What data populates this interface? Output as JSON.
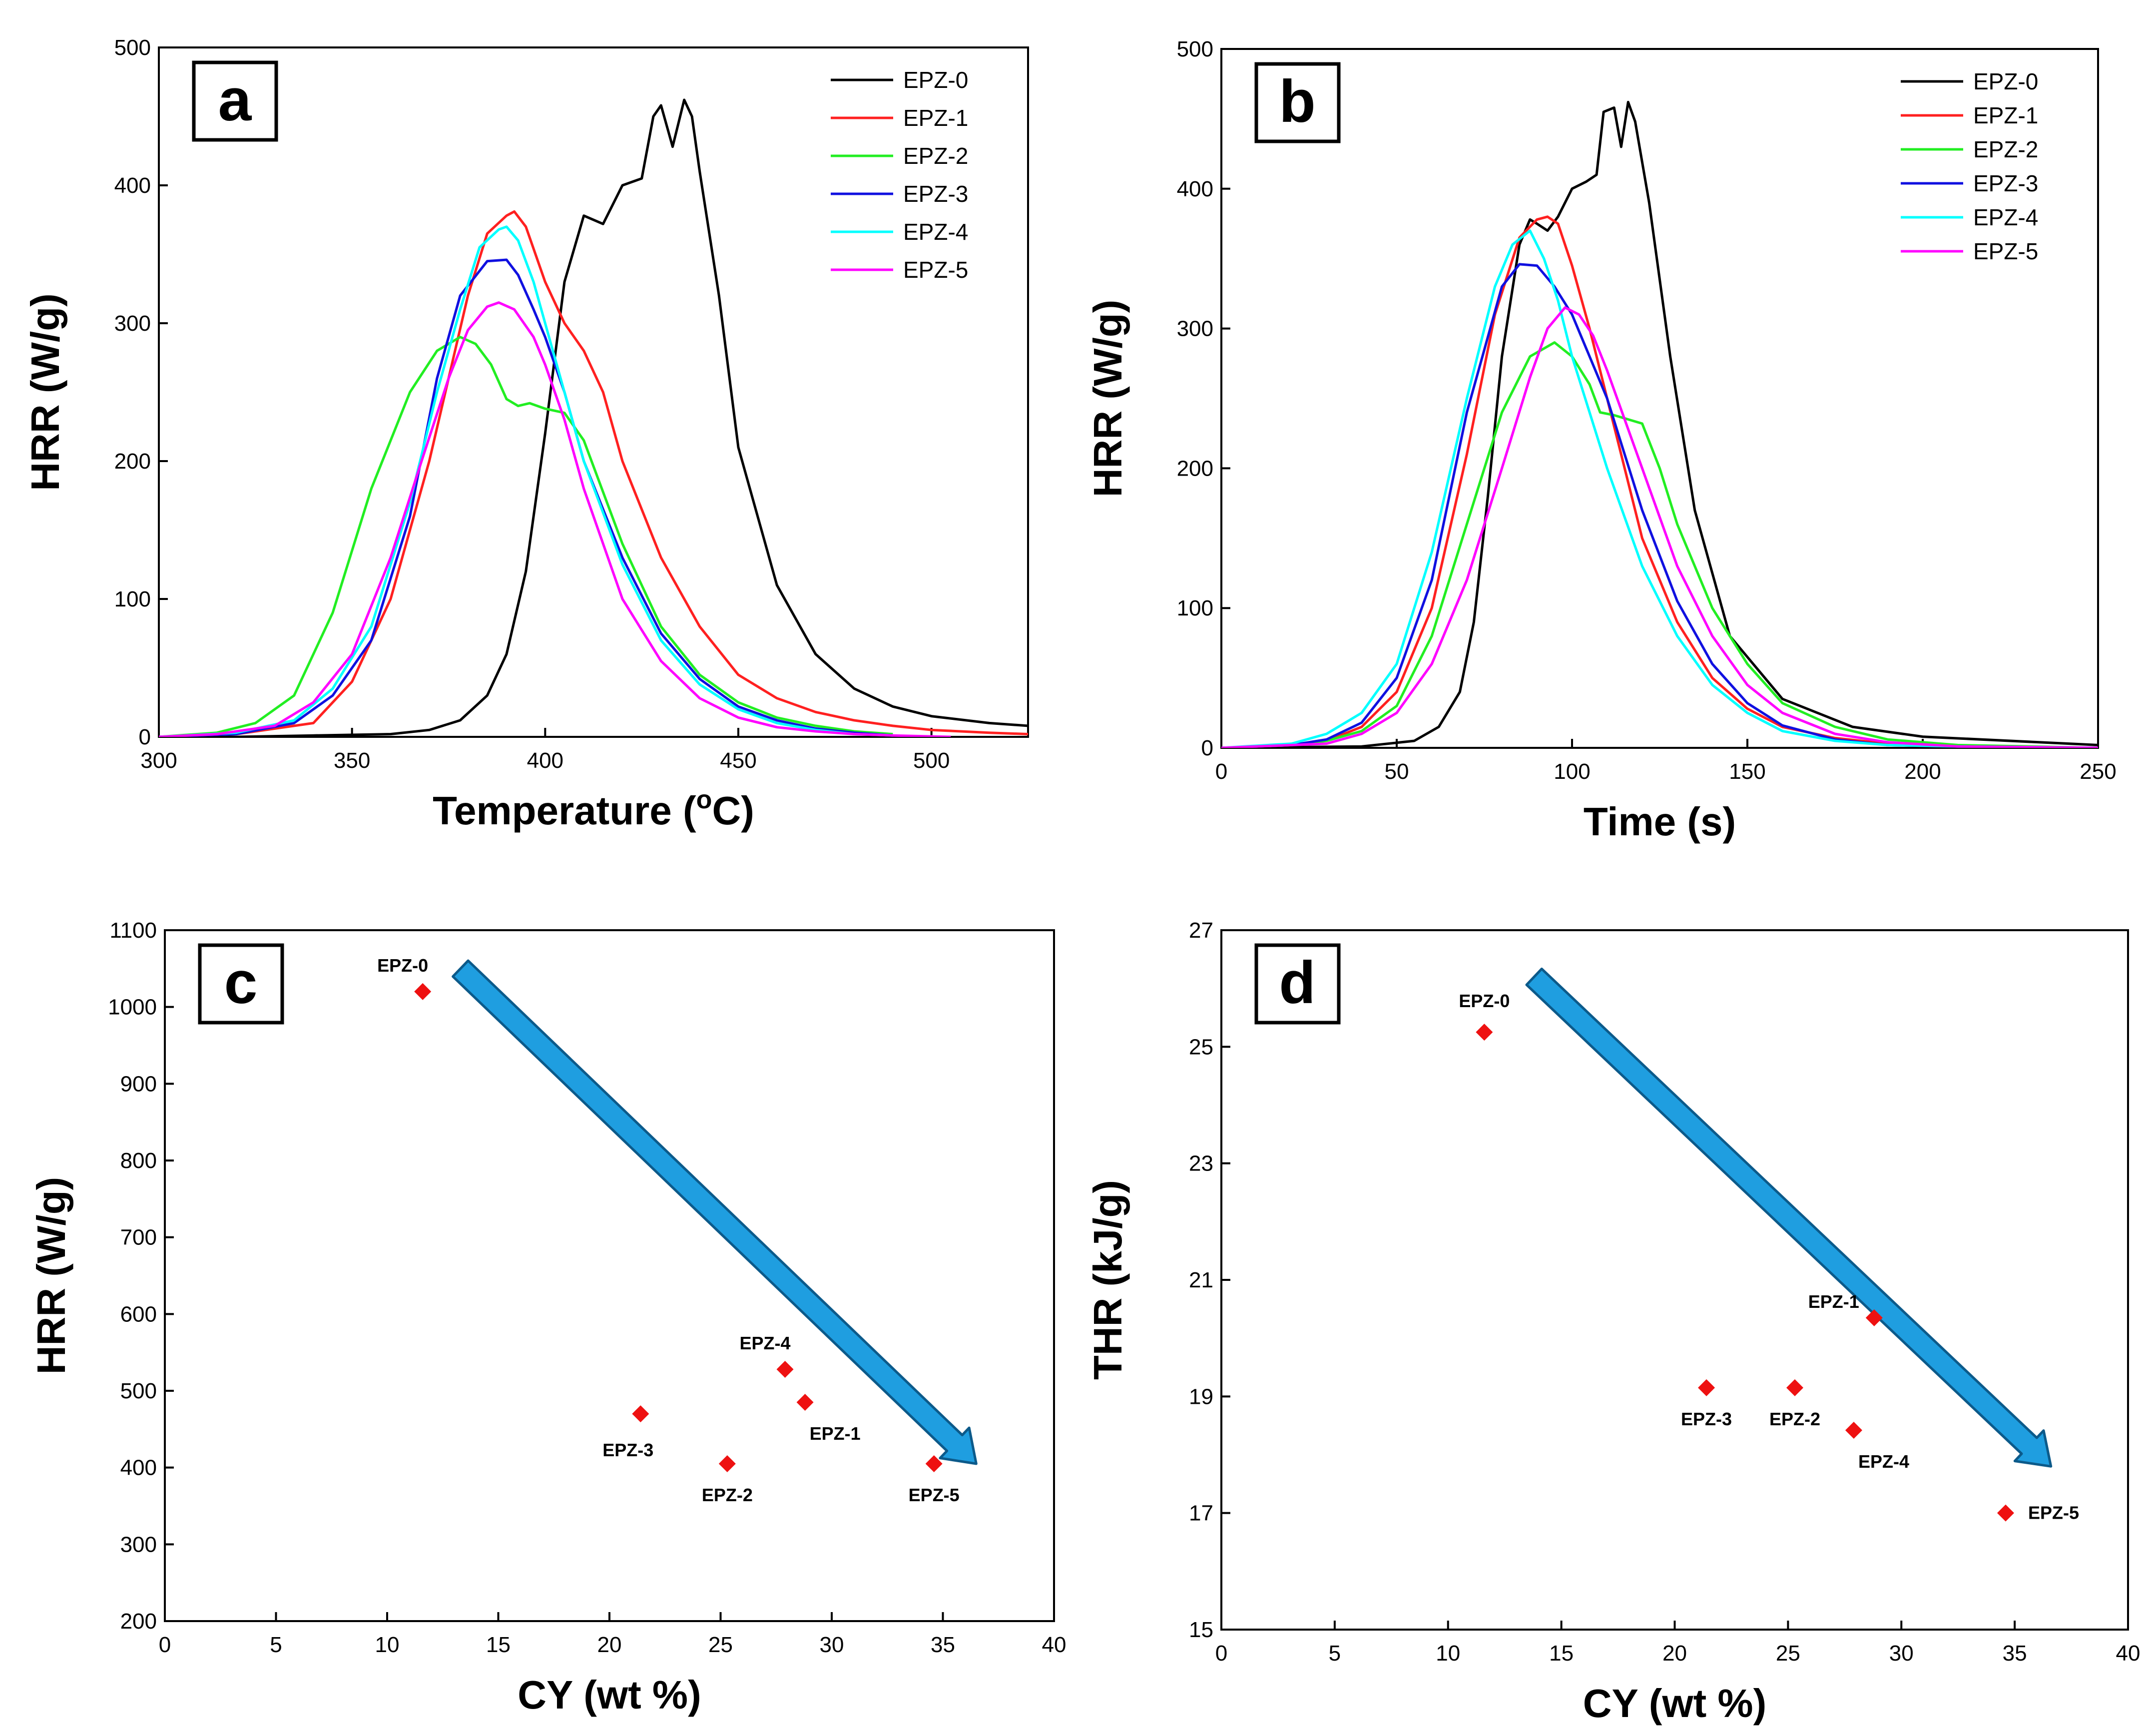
{
  "colors": {
    "EPZ-0": "#000000",
    "EPZ-1": "#ff2020",
    "EPZ-2": "#22ee22",
    "EPZ-3": "#1010e0",
    "EPZ-4": "#00ffff",
    "EPZ-5": "#ff00ff",
    "marker": "#ee1111",
    "arrow_fill": "#1f9ee0",
    "arrow_stroke": "#0c5a8a"
  },
  "chart_data": [
    {
      "panel": "a",
      "type": "line",
      "xlabel": "Temperature (",
      "xlabel_sup": "o",
      "xlabel_tail": "C)",
      "ylabel": "HRR (W/g)",
      "xlim": [
        300,
        525
      ],
      "ylim": [
        0,
        500
      ],
      "xticks": [
        "300",
        "350",
        "400",
        "450",
        "500"
      ],
      "yticks": [
        "0",
        "100",
        "200",
        "300",
        "400",
        "500"
      ],
      "legend": [
        "EPZ-0",
        "EPZ-1",
        "EPZ-2",
        "EPZ-3",
        "EPZ-4",
        "EPZ-5"
      ],
      "series": [
        {
          "name": "EPZ-0",
          "x": [
            300,
            320,
            340,
            360,
            370,
            378,
            385,
            390,
            395,
            400,
            405,
            410,
            415,
            420,
            425,
            428,
            430,
            433,
            436,
            438,
            440,
            445,
            450,
            460,
            470,
            480,
            490,
            500,
            515,
            525
          ],
          "y": [
            0,
            0,
            1,
            2,
            5,
            12,
            30,
            60,
            120,
            220,
            330,
            378,
            372,
            400,
            405,
            450,
            458,
            428,
            462,
            450,
            410,
            320,
            210,
            110,
            60,
            35,
            22,
            15,
            10,
            8
          ]
        },
        {
          "name": "EPZ-1",
          "x": [
            300,
            320,
            340,
            350,
            360,
            370,
            380,
            385,
            390,
            392,
            395,
            400,
            405,
            410,
            415,
            420,
            430,
            440,
            450,
            460,
            470,
            480,
            490,
            500,
            515,
            525
          ],
          "y": [
            0,
            2,
            10,
            40,
            100,
            200,
            320,
            365,
            378,
            381,
            370,
            330,
            300,
            280,
            250,
            200,
            130,
            80,
            45,
            28,
            18,
            12,
            8,
            5,
            3,
            2
          ]
        },
        {
          "name": "EPZ-2",
          "x": [
            300,
            315,
            325,
            335,
            345,
            355,
            365,
            372,
            378,
            382,
            386,
            390,
            393,
            396,
            400,
            405,
            410,
            420,
            430,
            440,
            450,
            460,
            470,
            480,
            490
          ],
          "y": [
            0,
            3,
            10,
            30,
            90,
            180,
            250,
            280,
            290,
            285,
            270,
            245,
            240,
            242,
            238,
            235,
            215,
            140,
            80,
            45,
            25,
            14,
            8,
            4,
            2
          ]
        },
        {
          "name": "EPZ-3",
          "x": [
            300,
            320,
            335,
            345,
            355,
            365,
            372,
            378,
            385,
            390,
            393,
            397,
            400,
            405,
            410,
            420,
            430,
            440,
            450,
            460,
            470,
            480,
            490
          ],
          "y": [
            0,
            2,
            10,
            30,
            70,
            160,
            260,
            320,
            345,
            346,
            335,
            310,
            290,
            250,
            200,
            130,
            75,
            42,
            22,
            12,
            6,
            3,
            1
          ]
        },
        {
          "name": "EPZ-4",
          "x": [
            300,
            320,
            335,
            345,
            355,
            365,
            372,
            378,
            383,
            388,
            390,
            393,
            397,
            400,
            405,
            410,
            420,
            430,
            440,
            450,
            460,
            470,
            480,
            490
          ],
          "y": [
            0,
            3,
            12,
            35,
            80,
            170,
            250,
            310,
            355,
            368,
            370,
            360,
            330,
            300,
            250,
            200,
            125,
            70,
            38,
            20,
            10,
            5,
            2,
            1
          ]
        },
        {
          "name": "EPZ-5",
          "x": [
            300,
            315,
            330,
            340,
            350,
            360,
            368,
            375,
            380,
            385,
            388,
            392,
            397,
            400,
            405,
            410,
            420,
            430,
            440,
            450,
            460,
            470,
            480,
            490,
            505
          ],
          "y": [
            0,
            2,
            8,
            25,
            60,
            130,
            200,
            260,
            295,
            312,
            315,
            310,
            290,
            270,
            230,
            180,
            100,
            55,
            28,
            14,
            7,
            4,
            2,
            1,
            0
          ]
        }
      ]
    },
    {
      "panel": "b",
      "type": "line",
      "xlabel": "Time (s)",
      "ylabel": "HRR (W/g)",
      "xlim": [
        0,
        250
      ],
      "ylim": [
        0,
        500
      ],
      "xticks": [
        "0",
        "50",
        "100",
        "150",
        "200",
        "250"
      ],
      "yticks": [
        "0",
        "100",
        "200",
        "300",
        "400",
        "500"
      ],
      "legend": [
        "EPZ-0",
        "EPZ-1",
        "EPZ-2",
        "EPZ-3",
        "EPZ-4",
        "EPZ-5"
      ],
      "series": [
        {
          "name": "EPZ-0",
          "x": [
            0,
            40,
            55,
            62,
            68,
            72,
            76,
            80,
            85,
            88,
            90,
            93,
            96,
            100,
            104,
            107,
            109,
            112,
            114,
            116,
            118,
            122,
            128,
            135,
            145,
            160,
            180,
            200,
            250
          ],
          "y": [
            0,
            1,
            5,
            15,
            40,
            90,
            180,
            280,
            360,
            378,
            375,
            370,
            380,
            400,
            405,
            410,
            455,
            458,
            430,
            462,
            448,
            390,
            280,
            170,
            80,
            35,
            15,
            8,
            2
          ]
        },
        {
          "name": "EPZ-1",
          "x": [
            0,
            20,
            30,
            40,
            50,
            60,
            70,
            78,
            85,
            90,
            93,
            96,
            100,
            105,
            110,
            115,
            120,
            130,
            140,
            150,
            160,
            175,
            190,
            210,
            250
          ],
          "y": [
            0,
            2,
            5,
            15,
            40,
            100,
            210,
            310,
            365,
            378,
            380,
            375,
            345,
            300,
            250,
            200,
            150,
            90,
            50,
            28,
            15,
            7,
            3,
            1,
            0
          ]
        },
        {
          "name": "EPZ-2",
          "x": [
            0,
            20,
            30,
            40,
            50,
            60,
            70,
            80,
            88,
            95,
            100,
            105,
            108,
            112,
            116,
            120,
            125,
            130,
            140,
            150,
            160,
            175,
            190,
            210,
            250
          ],
          "y": [
            0,
            2,
            5,
            12,
            30,
            80,
            160,
            240,
            280,
            290,
            280,
            260,
            240,
            238,
            235,
            232,
            200,
            160,
            100,
            60,
            32,
            15,
            6,
            2,
            0
          ]
        },
        {
          "name": "EPZ-3",
          "x": [
            0,
            20,
            30,
            40,
            50,
            60,
            70,
            80,
            85,
            90,
            95,
            100,
            110,
            120,
            130,
            140,
            150,
            160,
            175,
            190,
            210,
            250
          ],
          "y": [
            0,
            2,
            6,
            18,
            50,
            120,
            240,
            330,
            346,
            345,
            330,
            310,
            250,
            170,
            105,
            60,
            32,
            16,
            6,
            2,
            1,
            0
          ]
        },
        {
          "name": "EPZ-4",
          "x": [
            0,
            20,
            30,
            40,
            50,
            60,
            70,
            78,
            83,
            88,
            92,
            96,
            100,
            110,
            120,
            130,
            140,
            150,
            160,
            175,
            190,
            210,
            250
          ],
          "y": [
            0,
            3,
            10,
            25,
            60,
            140,
            250,
            330,
            360,
            370,
            350,
            320,
            280,
            200,
            130,
            80,
            45,
            25,
            12,
            5,
            2,
            1,
            0
          ]
        },
        {
          "name": "EPZ-5",
          "x": [
            0,
            30,
            40,
            50,
            60,
            70,
            80,
            88,
            93,
            98,
            102,
            106,
            110,
            120,
            130,
            140,
            150,
            160,
            175,
            190,
            210,
            250
          ],
          "y": [
            0,
            3,
            10,
            25,
            60,
            120,
            200,
            265,
            300,
            315,
            310,
            295,
            270,
            200,
            130,
            80,
            45,
            25,
            10,
            4,
            1,
            0
          ]
        }
      ]
    },
    {
      "panel": "c",
      "type": "scatter",
      "xlabel": "CY (wt %)",
      "ylabel": "HRR (W/g)",
      "xlim": [
        0,
        40
      ],
      "ylim": [
        200,
        1100
      ],
      "xticks": [
        "0",
        "5",
        "10",
        "15",
        "20",
        "25",
        "30",
        "35",
        "40"
      ],
      "yticks": [
        "200",
        "300",
        "400",
        "500",
        "600",
        "700",
        "800",
        "900",
        "1000",
        "1100"
      ],
      "points": [
        {
          "label": "EPZ-0",
          "x": 11.6,
          "y": 1020,
          "pos": "above-left"
        },
        {
          "label": "EPZ-4",
          "x": 27.9,
          "y": 528,
          "pos": "above-left"
        },
        {
          "label": "EPZ-1",
          "x": 28.8,
          "y": 485,
          "pos": "below-right"
        },
        {
          "label": "EPZ-3",
          "x": 21.4,
          "y": 470,
          "pos": "below-left"
        },
        {
          "label": "EPZ-2",
          "x": 25.3,
          "y": 405,
          "pos": "below"
        },
        {
          "label": "EPZ-5",
          "x": 34.6,
          "y": 405,
          "pos": "below"
        }
      ],
      "arrow": {
        "from": [
          13.3,
          1050
        ],
        "to": [
          36.5,
          405
        ]
      }
    },
    {
      "panel": "d",
      "type": "scatter",
      "xlabel": "CY (wt %)",
      "ylabel": "THR (kJ/g)",
      "xlim": [
        0,
        40
      ],
      "ylim": [
        15,
        27
      ],
      "xticks": [
        "0",
        "5",
        "10",
        "15",
        "20",
        "25",
        "30",
        "35",
        "40"
      ],
      "yticks": [
        "15",
        "17",
        "19",
        "21",
        "23",
        "25",
        "27"
      ],
      "points": [
        {
          "label": "EPZ-0",
          "x": 11.6,
          "y": 25.25,
          "pos": "above"
        },
        {
          "label": "EPZ-1",
          "x": 28.8,
          "y": 20.35,
          "pos": "left"
        },
        {
          "label": "EPZ-3",
          "x": 21.4,
          "y": 19.15,
          "pos": "below"
        },
        {
          "label": "EPZ-2",
          "x": 25.3,
          "y": 19.15,
          "pos": "below"
        },
        {
          "label": "EPZ-4",
          "x": 27.9,
          "y": 18.42,
          "pos": "below-right"
        },
        {
          "label": "EPZ-5",
          "x": 34.6,
          "y": 17.0,
          "pos": "right"
        }
      ],
      "arrow": {
        "from": [
          13.8,
          26.2
        ],
        "to": [
          36.6,
          17.8
        ]
      }
    }
  ]
}
